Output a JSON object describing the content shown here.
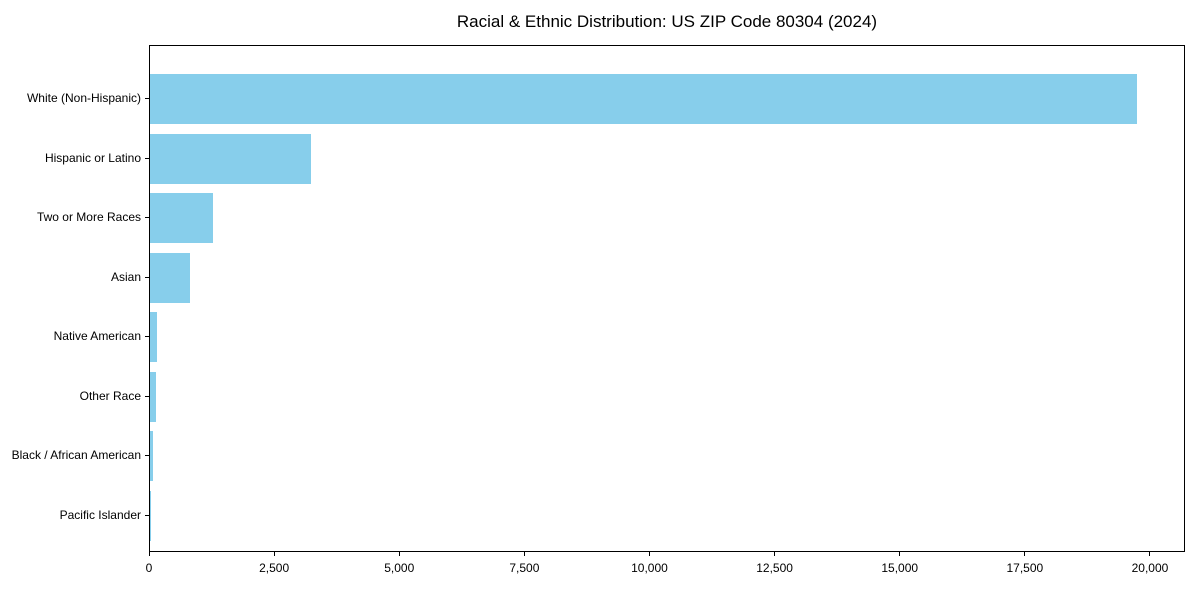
{
  "chart_data": {
    "type": "bar",
    "orientation": "horizontal",
    "title": "Racial & Ethnic Distribution: US ZIP Code 80304 (2024)",
    "categories": [
      "White (Non-Hispanic)",
      "Hispanic or Latino",
      "Two or More Races",
      "Asian",
      "Native American",
      "Other Race",
      "Black / African American",
      "Pacific Islander"
    ],
    "values": [
      19720,
      3220,
      1260,
      800,
      130,
      115,
      60,
      10
    ],
    "xlabel": "",
    "ylabel": "",
    "xlim": [
      0,
      20700
    ],
    "x_ticks": [
      0,
      2500,
      5000,
      7500,
      10000,
      12500,
      15000,
      17500,
      20000
    ],
    "x_tick_labels": [
      "0",
      "2,500",
      "5,000",
      "7,500",
      "10,000",
      "12,500",
      "15,000",
      "17,500",
      "20,000"
    ],
    "bar_color": "#87CEEB",
    "spine_color": "#000000",
    "text_color": "#000000",
    "grid": false,
    "legend": null
  }
}
